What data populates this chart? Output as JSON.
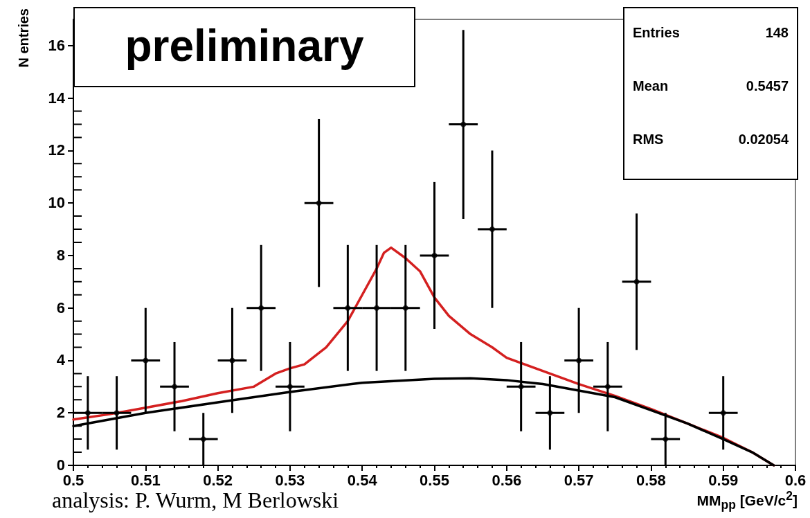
{
  "chart_data": {
    "type": "scatter",
    "xlabel": "MM$_{pp}$ [GeV/c$^{2}$]",
    "ylabel": "N entries",
    "annotations": [
      "preliminary",
      "Entries",
      "148",
      "Mean",
      "0.5457",
      "RMS",
      "0.02054",
      "analysis: P. Wurm, M Berlowski"
    ],
    "xlim": [
      0.5,
      0.6
    ],
    "xticks": [
      0.5,
      0.51,
      0.52,
      0.53,
      0.54,
      0.55,
      0.56,
      0.57,
      0.58,
      0.59,
      0.6
    ],
    "ylim": [
      0,
      17
    ],
    "yticks": [
      0,
      2,
      4,
      6,
      8,
      10,
      12,
      14,
      16
    ],
    "grid": false,
    "series": [
      {
        "color": "#000000",
        "x": [
          0.502,
          0.506,
          0.51,
          0.514,
          0.518,
          0.522,
          0.526,
          0.53,
          0.534,
          0.538,
          0.542,
          0.546,
          0.55,
          0.554,
          0.558,
          0.562,
          0.566,
          0.57,
          0.574,
          0.578,
          0.582,
          0.59
        ],
        "values": [
          2,
          2,
          4,
          3,
          1,
          4,
          6,
          3,
          10,
          6,
          6,
          6,
          8,
          13,
          9,
          3,
          2,
          4,
          3,
          7,
          1,
          2
        ],
        "errors": [
          1.4,
          1.4,
          2,
          1.7,
          1,
          2,
          2.4,
          1.7,
          3.2,
          2.4,
          2.4,
          2.4,
          2.8,
          3.6,
          3,
          1.7,
          1.4,
          2,
          1.7,
          2.6,
          1,
          1.4
        ],
        "xerrors": [
          0.002,
          0.002,
          0.002,
          0.002,
          0.002,
          0.002,
          0.002,
          0.002,
          0.002,
          0.002,
          0.002,
          0.002,
          0.002,
          0.002,
          0.002,
          0.002,
          0.002,
          0.002,
          0.002,
          0.002,
          0.002,
          0.002
        ]
      },
      {
        "type": "line",
        "color": "#d42020",
        "line_style": "solid",
        "x": [
          0.5,
          0.505,
          0.51,
          0.515,
          0.52,
          0.525,
          0.528,
          0.53,
          0.532,
          0.535,
          0.538,
          0.54,
          0.542,
          0.543,
          0.544,
          0.546,
          0.548,
          0.55,
          0.552,
          0.555,
          0.558,
          0.56,
          0.565,
          0.57,
          0.575,
          0.58,
          0.585,
          0.59,
          0.594,
          0.597
        ],
        "values": [
          1.75,
          1.95,
          2.2,
          2.45,
          2.75,
          3.0,
          3.5,
          3.7,
          3.85,
          4.5,
          5.5,
          6.5,
          7.5,
          8.1,
          8.3,
          7.9,
          7.4,
          6.4,
          5.7,
          5.0,
          4.5,
          4.1,
          3.6,
          3.1,
          2.65,
          2.15,
          1.6,
          1.05,
          0.5,
          0
        ]
      },
      {
        "type": "line",
        "color": "#000000",
        "line_style": "solid",
        "x": [
          0.5,
          0.51,
          0.52,
          0.53,
          0.54,
          0.55,
          0.555,
          0.56,
          0.565,
          0.57,
          0.575,
          0.58,
          0.585,
          0.59,
          0.594,
          0.597
        ],
        "values": [
          1.5,
          2.0,
          2.4,
          2.8,
          3.15,
          3.3,
          3.32,
          3.25,
          3.1,
          2.85,
          2.6,
          2.1,
          1.6,
          1.0,
          0.5,
          0
        ]
      }
    ]
  }
}
